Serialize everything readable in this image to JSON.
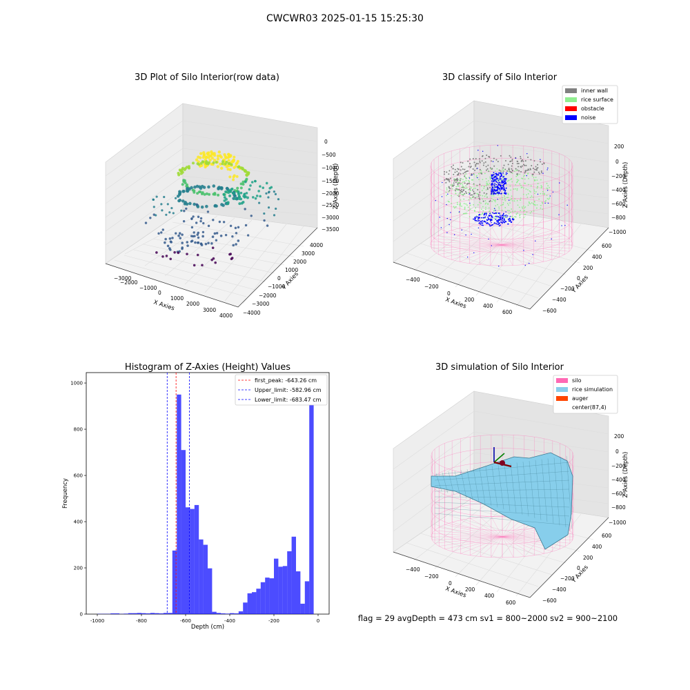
{
  "suptitle": "CWCWR03 2025-01-15 15:25:30",
  "footer": "flag = 29  avgDepth = 473 cm  sv1 = 800~2000  sv2 = 900~2100",
  "colors": {
    "inner_wall": "#808080",
    "rice_surface": "#90ee90",
    "obstacle": "#ff0000",
    "noise": "#0000ff",
    "silo": "#ff69b4",
    "rice_simulation": "#87ceeb",
    "auger": "#ff4500",
    "hist_bar": "#0000ff"
  },
  "chart_data": [
    {
      "type": "scatter",
      "title": "3D Plot of Silo Interior(row data)",
      "xlabel": "X Axies",
      "ylabel": "Y Axies",
      "zlabel": "Z Axies (Depth)",
      "xticks": [
        "−3000",
        "−2000",
        "−1000",
        "0",
        "1000",
        "2000",
        "3000",
        "4000"
      ],
      "yticks": [
        "4000",
        "3000",
        "2000",
        "1000",
        "0",
        "−1000",
        "−2000",
        "−3000",
        "−4000"
      ],
      "zticks": [
        "0",
        "−500",
        "−1000",
        "−1500",
        "−2000",
        "−2500",
        "−3000",
        "−3500"
      ],
      "colormap": "viridis"
    },
    {
      "type": "scatter",
      "title": "3D classify of Silo Interior",
      "xlabel": "X Axies",
      "ylabel": "Y Axies",
      "zlabel": "Z Axies (Depth)",
      "xticks": [
        "−400",
        "−200",
        "0",
        "200",
        "400",
        "600"
      ],
      "yticks": [
        "600",
        "400",
        "200",
        "0",
        "−200",
        "−400",
        "−600"
      ],
      "zticks": [
        "200",
        "0",
        "−200",
        "−400",
        "−600",
        "−800",
        "−1000"
      ],
      "legend": [
        "inner wall",
        "rice surface",
        "obstacle",
        "noise"
      ],
      "legend_loc": "upper right"
    },
    {
      "type": "bar",
      "title": "Histogram of Z-Axies (Height) Values",
      "xlabel": "Depth (cm)",
      "ylabel": "Frequency",
      "xlim": [
        -1050,
        50
      ],
      "ylim": [
        0,
        1045
      ],
      "xticks": [
        -1000,
        -800,
        -600,
        -400,
        -200,
        0
      ],
      "yticks": [
        0,
        200,
        400,
        600,
        800,
        1000
      ],
      "bin_width": 20,
      "bins": [
        {
          "x": -1000,
          "v": 1
        },
        {
          "x": -980,
          "v": 1
        },
        {
          "x": -960,
          "v": 1
        },
        {
          "x": -940,
          "v": 3
        },
        {
          "x": -920,
          "v": 3
        },
        {
          "x": -900,
          "v": 1
        },
        {
          "x": -880,
          "v": 2
        },
        {
          "x": -860,
          "v": 4
        },
        {
          "x": -840,
          "v": 4
        },
        {
          "x": -820,
          "v": 5
        },
        {
          "x": -800,
          "v": 4
        },
        {
          "x": -780,
          "v": 3
        },
        {
          "x": -760,
          "v": 5
        },
        {
          "x": -740,
          "v": 4
        },
        {
          "x": -720,
          "v": 3
        },
        {
          "x": -700,
          "v": 5
        },
        {
          "x": -680,
          "v": 5
        },
        {
          "x": -660,
          "v": 275
        },
        {
          "x": -640,
          "v": 950
        },
        {
          "x": -620,
          "v": 710
        },
        {
          "x": -600,
          "v": 462
        },
        {
          "x": -580,
          "v": 455
        },
        {
          "x": -560,
          "v": 472
        },
        {
          "x": -540,
          "v": 323
        },
        {
          "x": -520,
          "v": 300
        },
        {
          "x": -500,
          "v": 198
        },
        {
          "x": -480,
          "v": 10
        },
        {
          "x": -460,
          "v": 5
        },
        {
          "x": -440,
          "v": 3
        },
        {
          "x": -420,
          "v": 2
        },
        {
          "x": -400,
          "v": 4
        },
        {
          "x": -380,
          "v": 3
        },
        {
          "x": -360,
          "v": 12
        },
        {
          "x": -340,
          "v": 50
        },
        {
          "x": -320,
          "v": 90
        },
        {
          "x": -300,
          "v": 95
        },
        {
          "x": -280,
          "v": 110
        },
        {
          "x": -260,
          "v": 138
        },
        {
          "x": -240,
          "v": 158
        },
        {
          "x": -220,
          "v": 155
        },
        {
          "x": -200,
          "v": 240
        },
        {
          "x": -180,
          "v": 205
        },
        {
          "x": -160,
          "v": 208
        },
        {
          "x": -140,
          "v": 272
        },
        {
          "x": -120,
          "v": 335
        },
        {
          "x": -100,
          "v": 185
        },
        {
          "x": -80,
          "v": 45
        },
        {
          "x": -60,
          "v": 142
        },
        {
          "x": -40,
          "v": 990
        }
      ],
      "vlines": [
        {
          "label": "first_peak: -643.26 cm",
          "x": -643.26,
          "color": "#ff0000"
        },
        {
          "label": "Upper_limit: -582.96 cm",
          "x": -582.96,
          "color": "#0000ff"
        },
        {
          "label": "Lower_limit: -683.47 cm",
          "x": -683.47,
          "color": "#0000ff"
        }
      ],
      "legend_loc": "upper right"
    },
    {
      "type": "other",
      "title": "3D simulation of Silo Interior",
      "xlabel": "X Axies",
      "ylabel": "Y Axies",
      "zlabel": "Z Axies (Depth)",
      "xticks": [
        "−400",
        "−200",
        "0",
        "200",
        "400",
        "600"
      ],
      "yticks": [
        "600",
        "400",
        "200",
        "0",
        "−200",
        "−400",
        "−600"
      ],
      "zticks": [
        "200",
        "0",
        "−200",
        "−400",
        "−600",
        "−800",
        "−1000"
      ],
      "legend": [
        "silo",
        "rice simulation",
        "auger",
        "center(87,4)"
      ],
      "legend_loc": "upper right"
    }
  ]
}
